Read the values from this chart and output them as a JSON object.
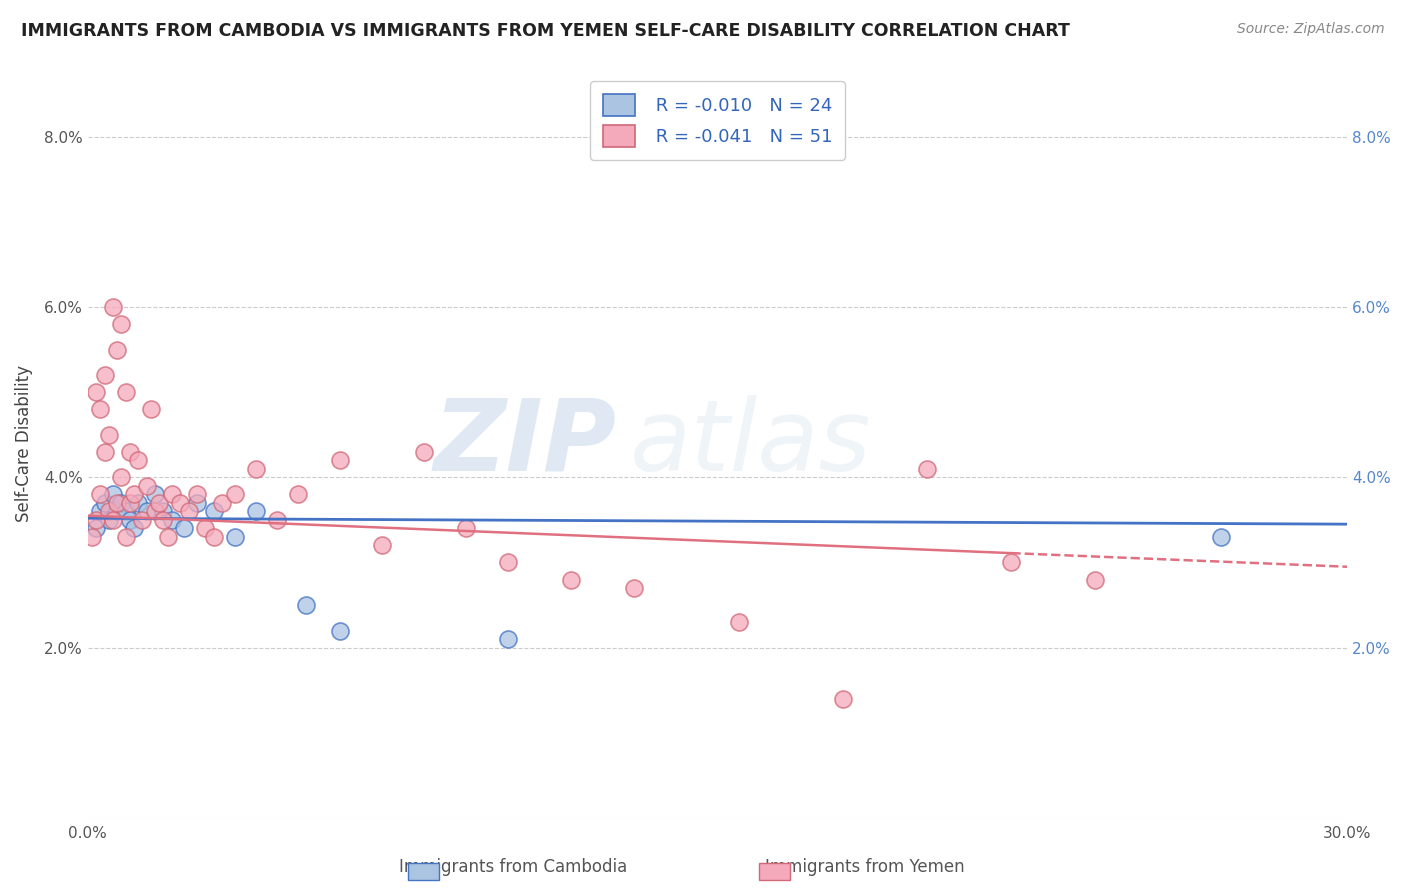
{
  "title": "IMMIGRANTS FROM CAMBODIA VS IMMIGRANTS FROM YEMEN SELF-CARE DISABILITY CORRELATION CHART",
  "source": "Source: ZipAtlas.com",
  "xlabel_cambodia": "Immigrants from Cambodia",
  "xlabel_yemen": "Immigrants from Yemen",
  "ylabel": "Self-Care Disability",
  "xlim": [
    0.0,
    0.3
  ],
  "ylim": [
    0.0,
    0.088
  ],
  "yticks": [
    0.0,
    0.02,
    0.04,
    0.06,
    0.08
  ],
  "ytick_labels": [
    "",
    "2.0%",
    "4.0%",
    "6.0%",
    "8.0%"
  ],
  "xticks": [
    0.0,
    0.05,
    0.1,
    0.15,
    0.2,
    0.25,
    0.3
  ],
  "xtick_labels": [
    "0.0%",
    "",
    "",
    "",
    "",
    "",
    "30.0%"
  ],
  "legend_R_cambodia": "R = -0.010",
  "legend_N_cambodia": "N = 24",
  "legend_R_yemen": "R = -0.041",
  "legend_N_yemen": "N = 51",
  "color_cambodia": "#aac4e2",
  "color_yemen": "#f5aabb",
  "color_line_cambodia": "#4472c4",
  "color_line_yemen": "#e07080",
  "watermark_zip": "ZIP",
  "watermark_atlas": "atlas",
  "cambodia_x": [
    0.002,
    0.003,
    0.004,
    0.005,
    0.006,
    0.007,
    0.008,
    0.009,
    0.01,
    0.011,
    0.012,
    0.014,
    0.016,
    0.018,
    0.02,
    0.023,
    0.026,
    0.03,
    0.035,
    0.04,
    0.052,
    0.06,
    0.1,
    0.27
  ],
  "cambodia_y": [
    0.034,
    0.036,
    0.037,
    0.035,
    0.038,
    0.036,
    0.037,
    0.036,
    0.035,
    0.034,
    0.037,
    0.036,
    0.038,
    0.036,
    0.035,
    0.034,
    0.037,
    0.036,
    0.033,
    0.036,
    0.025,
    0.022,
    0.021,
    0.033
  ],
  "yemen_x": [
    0.001,
    0.002,
    0.002,
    0.003,
    0.003,
    0.004,
    0.004,
    0.005,
    0.005,
    0.006,
    0.006,
    0.007,
    0.007,
    0.008,
    0.008,
    0.009,
    0.009,
    0.01,
    0.01,
    0.011,
    0.012,
    0.013,
    0.014,
    0.015,
    0.016,
    0.017,
    0.018,
    0.019,
    0.02,
    0.022,
    0.024,
    0.026,
    0.028,
    0.03,
    0.032,
    0.035,
    0.04,
    0.045,
    0.05,
    0.06,
    0.07,
    0.08,
    0.09,
    0.1,
    0.115,
    0.13,
    0.155,
    0.18,
    0.2,
    0.22,
    0.24
  ],
  "yemen_y": [
    0.033,
    0.05,
    0.035,
    0.048,
    0.038,
    0.043,
    0.052,
    0.036,
    0.045,
    0.06,
    0.035,
    0.055,
    0.037,
    0.058,
    0.04,
    0.033,
    0.05,
    0.037,
    0.043,
    0.038,
    0.042,
    0.035,
    0.039,
    0.048,
    0.036,
    0.037,
    0.035,
    0.033,
    0.038,
    0.037,
    0.036,
    0.038,
    0.034,
    0.033,
    0.037,
    0.038,
    0.041,
    0.035,
    0.038,
    0.042,
    0.032,
    0.043,
    0.034,
    0.03,
    0.028,
    0.027,
    0.023,
    0.014,
    0.041,
    0.03,
    0.028
  ]
}
